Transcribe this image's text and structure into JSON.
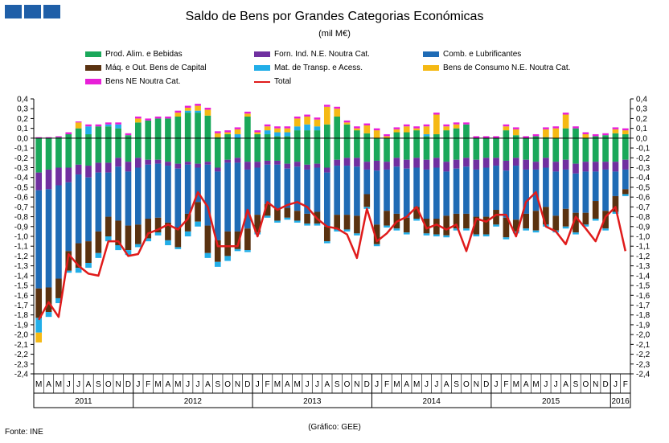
{
  "header": {
    "title": "Saldo de Bens por Grandes Categorias Económicas",
    "subtitle": "(mil M€)"
  },
  "footer": {
    "source": "Fonte: INE",
    "credit": "(Gráfico: GEE)"
  },
  "chart_data": {
    "type": "bar",
    "stacked": true,
    "ylim": [
      -2.4,
      0.4
    ],
    "yticks": [
      "0,4",
      "0,3",
      "0,2",
      "0,1",
      "0,0",
      "-0,1",
      "-0,2",
      "-0,3",
      "-0,4",
      "-0,5",
      "-0,6",
      "-0,7",
      "-0,8",
      "-0,9",
      "-1,0",
      "-1,1",
      "-1,2",
      "-1,3",
      "-1,4",
      "-1,5",
      "-1,6",
      "-1,7",
      "-1,8",
      "-1,9",
      "-2,0",
      "-2,1",
      "-2,2",
      "-2,3",
      "-2,4"
    ],
    "grid": false,
    "legend_position": "top",
    "months": [
      "M",
      "A",
      "M",
      "J",
      "J",
      "A",
      "S",
      "O",
      "N",
      "D",
      "J",
      "F",
      "M",
      "A",
      "M",
      "J",
      "J",
      "A",
      "S",
      "O",
      "N",
      "D",
      "J",
      "F",
      "M",
      "A",
      "M",
      "J",
      "J",
      "A",
      "S",
      "O",
      "N",
      "D",
      "J",
      "F",
      "M",
      "A",
      "M",
      "J",
      "J",
      "A",
      "S",
      "O",
      "N",
      "D",
      "J",
      "F",
      "M",
      "A",
      "M",
      "J",
      "J",
      "A",
      "S",
      "O",
      "N",
      "D",
      "J",
      "F"
    ],
    "years": [
      {
        "label": "2011",
        "count": 10
      },
      {
        "label": "2012",
        "count": 12
      },
      {
        "label": "2013",
        "count": 12
      },
      {
        "label": "2014",
        "count": 12
      },
      {
        "label": "2015",
        "count": 12
      },
      {
        "label": "2016",
        "count": 2
      }
    ],
    "series": [
      {
        "name": "Prod. Alim. e Bebidas",
        "color": "#1aa85a",
        "values": [
          -0.35,
          -0.32,
          -0.3,
          -0.3,
          -0.27,
          -0.28,
          -0.25,
          -0.25,
          -0.2,
          -0.24,
          -0.2,
          -0.22,
          -0.22,
          -0.24,
          -0.26,
          -0.24,
          -0.26,
          -0.24,
          -0.3,
          -0.22,
          -0.2,
          -0.24,
          -0.24,
          -0.23,
          -0.23,
          -0.26,
          -0.24,
          -0.27,
          -0.26,
          -0.3,
          -0.22,
          -0.2,
          -0.2,
          -0.24,
          -0.23,
          -0.24,
          -0.2,
          -0.22,
          -0.2,
          -0.22,
          -0.2,
          -0.24,
          -0.22,
          -0.2,
          -0.22,
          -0.2,
          -0.2,
          -0.23,
          -0.2,
          -0.22,
          -0.24,
          -0.2,
          -0.24,
          -0.22,
          -0.26,
          -0.24,
          -0.24,
          -0.24,
          -0.24,
          -0.22
        ]
      },
      {
        "name": "Forn. Ind. N.E. Noutra Cat.",
        "color": "#7030a0",
        "values": [
          -0.18,
          -0.2,
          -0.18,
          -0.15,
          -0.1,
          -0.12,
          -0.1,
          -0.1,
          -0.09,
          -0.1,
          -0.1,
          -0.05,
          -0.04,
          -0.04,
          -0.05,
          -0.03,
          -0.04,
          -0.03,
          -0.04,
          -0.03,
          -0.05,
          -0.08,
          -0.06,
          -0.04,
          -0.04,
          -0.05,
          -0.05,
          -0.05,
          -0.04,
          -0.05,
          -0.06,
          -0.08,
          -0.09,
          -0.08,
          -0.1,
          -0.08,
          -0.09,
          -0.09,
          -0.1,
          -0.1,
          -0.1,
          -0.1,
          -0.09,
          -0.09,
          -0.1,
          -0.1,
          -0.08,
          -0.1,
          -0.08,
          -0.1,
          -0.08,
          -0.1,
          -0.1,
          -0.1,
          -0.1,
          -0.1,
          -0.1,
          -0.08,
          -0.1,
          -0.1
        ]
      },
      {
        "name": "Comb. e Lubrificantes",
        "color": "#1f6bb5",
        "values": [
          -1.0,
          -1.0,
          -0.95,
          -0.7,
          -0.7,
          -0.65,
          -0.6,
          -0.45,
          -0.55,
          -0.55,
          -0.58,
          -0.55,
          -0.55,
          -0.58,
          -0.6,
          -0.5,
          -0.35,
          -0.62,
          -0.7,
          -0.7,
          -0.7,
          -0.6,
          -0.48,
          -0.4,
          -0.45,
          -0.4,
          -0.45,
          -0.45,
          -0.45,
          -0.55,
          -0.5,
          -0.5,
          -0.5,
          -0.25,
          -0.55,
          -0.42,
          -0.48,
          -0.5,
          -0.4,
          -0.5,
          -0.52,
          -0.45,
          -0.46,
          -0.48,
          -0.48,
          -0.5,
          -0.45,
          -0.48,
          -0.55,
          -0.45,
          -0.42,
          -0.4,
          -0.45,
          -0.4,
          -0.4,
          -0.42,
          -0.3,
          -0.42,
          -0.25,
          -0.2
        ]
      },
      {
        "name": "Máq. e Out. Bens de Capital",
        "color": "#5a3210",
        "values": [
          -0.3,
          -0.25,
          -0.2,
          -0.2,
          -0.25,
          -0.22,
          -0.22,
          -0.2,
          -0.25,
          -0.25,
          -0.2,
          -0.2,
          -0.15,
          -0.18,
          -0.2,
          -0.18,
          -0.2,
          -0.28,
          -0.22,
          -0.25,
          -0.18,
          -0.22,
          -0.18,
          -0.12,
          -0.12,
          -0.1,
          -0.1,
          -0.1,
          -0.12,
          -0.15,
          -0.15,
          -0.15,
          -0.18,
          -0.13,
          -0.2,
          -0.15,
          -0.15,
          -0.15,
          -0.12,
          -0.15,
          -0.16,
          -0.2,
          -0.15,
          -0.15,
          -0.18,
          -0.18,
          -0.15,
          -0.2,
          -0.12,
          -0.15,
          -0.2,
          -0.18,
          -0.15,
          -0.18,
          -0.2,
          -0.12,
          -0.18,
          -0.18,
          -0.16,
          -0.05
        ]
      },
      {
        "name": "Mat. de Transp. e Acess.",
        "color": "#22aee8",
        "values": [
          -0.15,
          -0.05,
          -0.05,
          -0.02,
          -0.05,
          -0.05,
          -0.05,
          -0.05,
          -0.05,
          -0.05,
          -0.03,
          -0.03,
          -0.03,
          -0.05,
          -0.02,
          -0.05,
          -0.05,
          -0.05,
          -0.05,
          -0.05,
          -0.02,
          -0.02,
          -0.02,
          -0.02,
          -0.02,
          -0.02,
          -0.02,
          -0.02,
          -0.02,
          -0.02,
          -0.02,
          -0.02,
          -0.02,
          -0.02,
          -0.02,
          -0.02,
          -0.02,
          -0.02,
          -0.02,
          -0.02,
          -0.02,
          -0.02,
          -0.02,
          -0.02,
          -0.02,
          -0.02,
          -0.02,
          -0.02,
          -0.02,
          -0.02,
          -0.02,
          -0.02,
          -0.02,
          -0.02,
          -0.02,
          -0.02,
          -0.02,
          -0.02,
          -0.02,
          -0.02
        ]
      },
      {
        "name": "Bens de Consumo N.E. Noutra Cat.",
        "color": "#f5b914",
        "values": [
          -0.1,
          0.0,
          0.0,
          0.0,
          0.0,
          0.0,
          0.0,
          0.0,
          0.0,
          0.0,
          0.0,
          0.0,
          0.0,
          0.0,
          0.0,
          0.0,
          0.0,
          0.0,
          0.0,
          0.0,
          0.0,
          0.0,
          0.0,
          0.0,
          0.0,
          0.0,
          0.0,
          0.0,
          0.0,
          0.0,
          0.0,
          0.0,
          0.0,
          0.0,
          0.0,
          0.0,
          0.0,
          0.0,
          0.0,
          0.0,
          0.0,
          0.0,
          0.0,
          0.0,
          0.0,
          0.0,
          0.0,
          0.0,
          0.0,
          0.0,
          0.0,
          0.0,
          0.0,
          0.0,
          0.0,
          0.0,
          0.0,
          0.0,
          0.0,
          0.0
        ]
      },
      {
        "name": "Bens NE Noutra Cat.",
        "color": "#e81fd8",
        "values": [
          0.0,
          0.0,
          0.0,
          0.0,
          0.0,
          0.0,
          0.0,
          0.0,
          0.0,
          0.0,
          0.0,
          0.0,
          0.0,
          0.0,
          0.0,
          0.0,
          0.0,
          0.0,
          0.0,
          0.0,
          0.0,
          0.0,
          0.0,
          0.0,
          0.0,
          0.0,
          0.0,
          0.0,
          0.0,
          0.0,
          0.0,
          0.0,
          0.0,
          0.0,
          0.0,
          0.0,
          0.0,
          0.0,
          0.0,
          0.0,
          0.0,
          0.0,
          0.0,
          0.0,
          0.0,
          0.0,
          0.0,
          0.0,
          0.0,
          0.0,
          0.0,
          0.0,
          0.0,
          0.0,
          0.0,
          0.0,
          0.0,
          0.0,
          0.0,
          0.0
        ]
      }
    ],
    "positive_series": [
      {
        "name": "Prod. Alim. e Bebidas",
        "color": "#1aa85a",
        "values": [
          0.0,
          0.0,
          0.01,
          0.04,
          0.1,
          0.04,
          0.12,
          0.12,
          0.1,
          0.03,
          0.16,
          0.18,
          0.2,
          0.2,
          0.22,
          0.26,
          0.26,
          0.23,
          0.01,
          0.04,
          0.0,
          0.22,
          0.04,
          0.04,
          0.02,
          0.02,
          0.08,
          0.08,
          0.08,
          0.14,
          0.22,
          0.14,
          0.08,
          0.05,
          0.0,
          0.0,
          0.06,
          0.06,
          0.08,
          0.02,
          0.04,
          0.08,
          0.1,
          0.14,
          0.0,
          0.0,
          0.0,
          0.08,
          0.03,
          0.0,
          0.02,
          0.01,
          0.0,
          0.1,
          0.1,
          0.0,
          0.02,
          0.03,
          0.05,
          0.04
        ]
      },
      {
        "name": "Comb. e Lubrificantes",
        "color": "#22aee8",
        "values": [
          0.0,
          0.0,
          0.0,
          0.0,
          0.0,
          0.08,
          0.0,
          0.02,
          0.04,
          0.0,
          0.0,
          0.0,
          0.0,
          0.0,
          0.0,
          0.02,
          0.02,
          0.0,
          0.0,
          0.0,
          0.04,
          0.0,
          0.0,
          0.04,
          0.04,
          0.04,
          0.04,
          0.06,
          0.04,
          0.0,
          0.0,
          0.0,
          0.0,
          0.0,
          0.0,
          0.0,
          0.0,
          0.0,
          0.0,
          0.02,
          0.0,
          0.0,
          0.0,
          0.0,
          0.0,
          0.0,
          0.0,
          0.0,
          0.0,
          0.0,
          0.0,
          0.0,
          0.0,
          0.0,
          0.0,
          0.0,
          0.0,
          0.0,
          0.0,
          0.0
        ]
      },
      {
        "name": "Bens de Consumo N.E. Noutra Cat.",
        "color": "#f5b914",
        "values": [
          0.0,
          0.0,
          0.0,
          0.0,
          0.06,
          0.0,
          0.0,
          0.0,
          0.0,
          0.0,
          0.04,
          0.0,
          0.0,
          0.0,
          0.04,
          0.03,
          0.05,
          0.06,
          0.04,
          0.02,
          0.05,
          0.03,
          0.02,
          0.04,
          0.04,
          0.04,
          0.08,
          0.08,
          0.07,
          0.18,
          0.08,
          0.02,
          0.02,
          0.08,
          0.08,
          0.02,
          0.03,
          0.06,
          0.02,
          0.08,
          0.2,
          0.04,
          0.04,
          0.0,
          0.0,
          0.0,
          0.0,
          0.04,
          0.06,
          0.0,
          0.0,
          0.08,
          0.1,
          0.14,
          0.0,
          0.04,
          0.0,
          0.0,
          0.04,
          0.04
        ]
      },
      {
        "name": "Bens NE Noutra Cat.",
        "color": "#e81fd8",
        "values": [
          0.01,
          0.01,
          0.01,
          0.02,
          0.01,
          0.02,
          0.02,
          0.02,
          0.02,
          0.02,
          0.02,
          0.02,
          0.02,
          0.02,
          0.02,
          0.02,
          0.02,
          0.02,
          0.02,
          0.02,
          0.02,
          0.02,
          0.02,
          0.02,
          0.02,
          0.02,
          0.02,
          0.02,
          0.02,
          0.02,
          0.02,
          0.02,
          0.02,
          0.02,
          0.02,
          0.02,
          0.02,
          0.02,
          0.02,
          0.02,
          0.02,
          0.02,
          0.02,
          0.02,
          0.02,
          0.02,
          0.02,
          0.02,
          0.02,
          0.02,
          0.02,
          0.02,
          0.02,
          0.02,
          0.02,
          0.02,
          0.02,
          0.02,
          0.02,
          0.02
        ]
      }
    ],
    "total": {
      "name": "Total",
      "color": "#e01b1b",
      "values": [
        -1.85,
        -1.67,
        -1.82,
        -1.18,
        -1.3,
        -1.38,
        -1.4,
        -1.05,
        -1.05,
        -1.2,
        -1.18,
        -0.97,
        -0.93,
        -0.88,
        -0.93,
        -0.82,
        -0.55,
        -0.7,
        -1.1,
        -1.1,
        -1.1,
        -0.73,
        -1.0,
        -0.65,
        -0.73,
        -0.68,
        -0.65,
        -0.7,
        -0.82,
        -0.9,
        -0.92,
        -0.98,
        -1.22,
        -0.72,
        -1.05,
        -0.97,
        -0.85,
        -0.8,
        -0.7,
        -0.92,
        -0.88,
        -0.93,
        -0.88,
        -1.15,
        -0.82,
        -0.85,
        -0.78,
        -0.78,
        -1.0,
        -0.65,
        -0.55,
        -0.9,
        -0.95,
        -1.08,
        -0.8,
        -0.92,
        -1.05,
        -0.8,
        -0.7,
        -1.15
      ]
    }
  },
  "legend": {
    "items": [
      {
        "label": "Prod. Alim. e Bebidas",
        "color": "#1aa85a",
        "kind": "box"
      },
      {
        "label": "Forn. Ind. N.E. Noutra Cat.",
        "color": "#7030a0",
        "kind": "box"
      },
      {
        "label": "Comb. e Lubrificantes",
        "color": "#1f6bb5",
        "kind": "box"
      },
      {
        "label": "Máq. e Out. Bens de Capital",
        "color": "#5a3210",
        "kind": "box"
      },
      {
        "label": "Mat. de Transp. e Acess.",
        "color": "#22aee8",
        "kind": "box"
      },
      {
        "label": "Bens de Consumo N.E. Noutra Cat.",
        "color": "#f5b914",
        "kind": "box"
      },
      {
        "label": "Bens NE Noutra Cat.",
        "color": "#e81fd8",
        "kind": "box"
      },
      {
        "label": "Total",
        "color": "#e01b1b",
        "kind": "line"
      }
    ]
  }
}
